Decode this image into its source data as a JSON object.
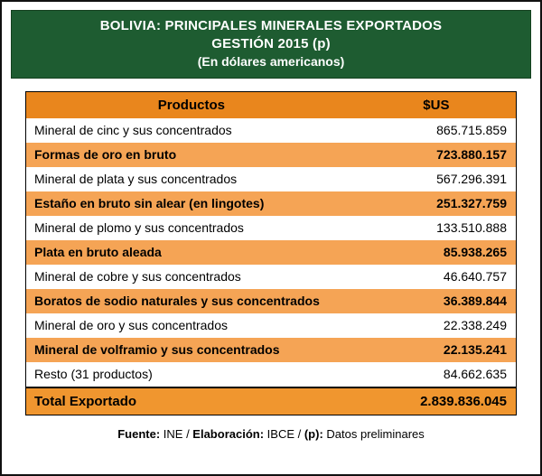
{
  "header": {
    "line1": "BOLIVIA: PRINCIPALES MINERALES EXPORTADOS",
    "line2": "GESTIÓN 2015 (p)",
    "line3": "(En dólares americanos)"
  },
  "colors": {
    "banner_green": "#1E5C31",
    "header_orange": "#E9861D",
    "row_orange": "#F5A455",
    "total_orange": "#F0962F",
    "text_white": "#FFFFFF",
    "text_black": "#000000"
  },
  "table": {
    "columns": [
      "Productos",
      "$US"
    ],
    "rows": [
      {
        "product": "Mineral de cinc y sus concentrados",
        "value": "865.715.859"
      },
      {
        "product": "Formas de oro en bruto",
        "value": "723.880.157"
      },
      {
        "product": "Mineral de plata y sus concentrados",
        "value": "567.296.391"
      },
      {
        "product": "Estaño en bruto sin alear (en lingotes)",
        "value": "251.327.759"
      },
      {
        "product": "Mineral de plomo y sus concentrados",
        "value": "133.510.888"
      },
      {
        "product": "Plata en bruto aleada",
        "value": "85.938.265"
      },
      {
        "product": "Mineral de cobre y sus concentrados",
        "value": "46.640.757"
      },
      {
        "product": "Boratos de sodio naturales y sus concentrados",
        "value": "36.389.844"
      },
      {
        "product": "Mineral de oro y sus concentrados",
        "value": "22.338.249"
      },
      {
        "product": "Mineral de volframio y sus concentrados",
        "value": "22.135.241"
      },
      {
        "product": "Resto (31 productos)",
        "value": "84.662.635"
      }
    ],
    "total": {
      "product": "Total Exportado",
      "value": "2.839.836.045"
    }
  },
  "footer": {
    "segments": [
      {
        "text": "Fuente:"
      },
      {
        "text": " INE / "
      },
      {
        "text": "Elaboración:"
      },
      {
        "text": " IBCE / "
      },
      {
        "text": "(p):"
      },
      {
        "text": " Datos preliminares"
      }
    ]
  },
  "chart_data": {
    "type": "table",
    "title": "BOLIVIA: PRINCIPALES MINERALES EXPORTADOS GESTIÓN 2015 (p) (En dólares americanos)",
    "columns": [
      "Productos",
      "$US"
    ],
    "categories": [
      "Mineral de cinc y sus concentrados",
      "Formas de oro en bruto",
      "Mineral de plata y sus concentrados",
      "Estaño en bruto sin alear (en lingotes)",
      "Mineral de plomo y sus concentrados",
      "Plata en bruto aleada",
      "Mineral de cobre y sus concentrados",
      "Boratos de sodio naturales y sus concentrados",
      "Mineral de oro y sus concentrados",
      "Mineral de volframio y sus concentrados",
      "Resto (31 productos)"
    ],
    "values": [
      865715859,
      723880157,
      567296391,
      251327759,
      133510888,
      85938265,
      46640757,
      36389844,
      22338249,
      22135241,
      84662635
    ],
    "total": {
      "label": "Total Exportado",
      "value": 2839836045
    },
    "unit": "US dollars",
    "source": "Fuente: INE / Elaboración: IBCE / (p): Datos preliminares"
  }
}
